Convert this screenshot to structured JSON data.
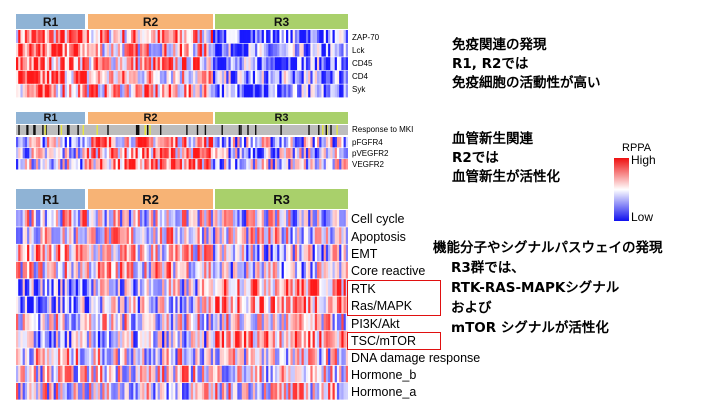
{
  "groups": [
    "R1",
    "R2",
    "R3"
  ],
  "colors": {
    "R1": "#8fb3d5",
    "R2": "#f7b375",
    "R3": "#a9d06b",
    "low": "#1010ee",
    "mid": "#ffffff",
    "high": "#ee1010",
    "highlight_box": "#e01010"
  },
  "panel_immune": {
    "rows": [
      "ZAP-70",
      "Lck",
      "CD45",
      "CD4",
      "Syk"
    ],
    "note_lines": [
      "免疫関連の発現",
      "R1, R2では",
      "免疫細胞の活動性が高い"
    ]
  },
  "panel_angio": {
    "rows": [
      "Response to MKI",
      "pFGFR4",
      "pVEGFR2",
      "VEGFR2"
    ],
    "note_lines": [
      "血管新生関連",
      "R2では",
      "血管新生が活性化"
    ]
  },
  "legend": {
    "title": "RPPA",
    "high": "High",
    "low": "Low"
  },
  "panel_pathway": {
    "rows": [
      "Cell cycle",
      "Apoptosis",
      "EMT",
      "Core reactive",
      "RTK",
      "Ras/MAPK",
      "PI3K/Akt",
      "TSC/mTOR",
      "DNA damage response",
      "Hormone_b",
      "Hormone_a"
    ],
    "highlighted_rows": [
      "RTK",
      "Ras/MAPK",
      "TSC/mTOR"
    ],
    "note_lines": [
      "機能分子やシグナルパスウェイの発現",
      "R3群では、",
      "RTK-RAS-MAPKシグナル",
      "および",
      "mTOR シグナルが活性化"
    ]
  }
}
